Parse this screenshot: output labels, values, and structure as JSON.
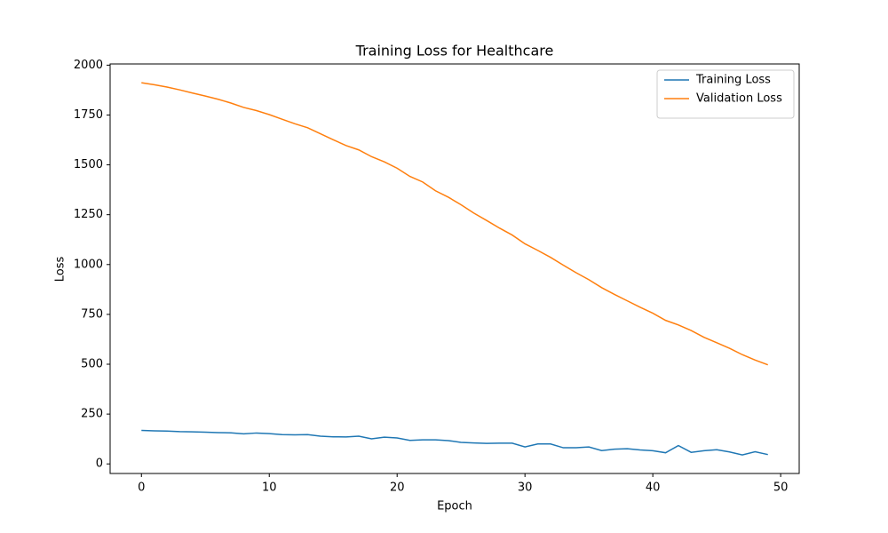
{
  "chart_data": {
    "type": "line",
    "title": "Training Loss for Healthcare",
    "xlabel": "Epoch",
    "ylabel": "Loss",
    "x": [
      0,
      1,
      2,
      3,
      4,
      5,
      6,
      7,
      8,
      9,
      10,
      11,
      12,
      13,
      14,
      15,
      16,
      17,
      18,
      19,
      20,
      21,
      22,
      23,
      24,
      25,
      26,
      27,
      28,
      29,
      30,
      31,
      32,
      33,
      34,
      35,
      36,
      37,
      38,
      39,
      40,
      41,
      42,
      43,
      44,
      45,
      46,
      47,
      48,
      49
    ],
    "series": [
      {
        "name": "Training Loss",
        "color": "#1f77b4",
        "values": [
          168,
          166,
          165,
          162,
          161,
          159,
          157,
          156,
          151,
          155,
          152,
          147,
          146,
          147,
          139,
          136,
          135,
          139,
          126,
          134,
          130,
          118,
          121,
          121,
          117,
          108,
          105,
          103,
          104,
          104,
          85,
          100,
          100,
          81,
          81,
          85,
          67,
          74,
          76,
          70,
          66,
          56,
          92,
          58,
          66,
          71,
          60,
          45,
          61,
          47
        ]
      },
      {
        "name": "Validation Loss",
        "color": "#ff7f0e",
        "values": [
          1912,
          1902,
          1890,
          1876,
          1860,
          1845,
          1829,
          1810,
          1788,
          1772,
          1752,
          1729,
          1706,
          1686,
          1656,
          1626,
          1597,
          1575,
          1541,
          1515,
          1483,
          1442,
          1414,
          1370,
          1338,
          1300,
          1258,
          1221,
          1183,
          1148,
          1104,
          1071,
          1036,
          997,
          959,
          924,
          884,
          850,
          818,
          786,
          756,
          720,
          697,
          669,
          635,
          608,
          580,
          548,
          521,
          497
        ]
      }
    ],
    "xlim": [
      -2.45,
      51.45
    ],
    "ylim": [
      -48,
      2006
    ],
    "xticks": [
      0,
      10,
      20,
      30,
      40,
      50
    ],
    "yticks": [
      0,
      250,
      500,
      750,
      1000,
      1250,
      1500,
      1750,
      2000
    ],
    "legend": "upper right"
  }
}
